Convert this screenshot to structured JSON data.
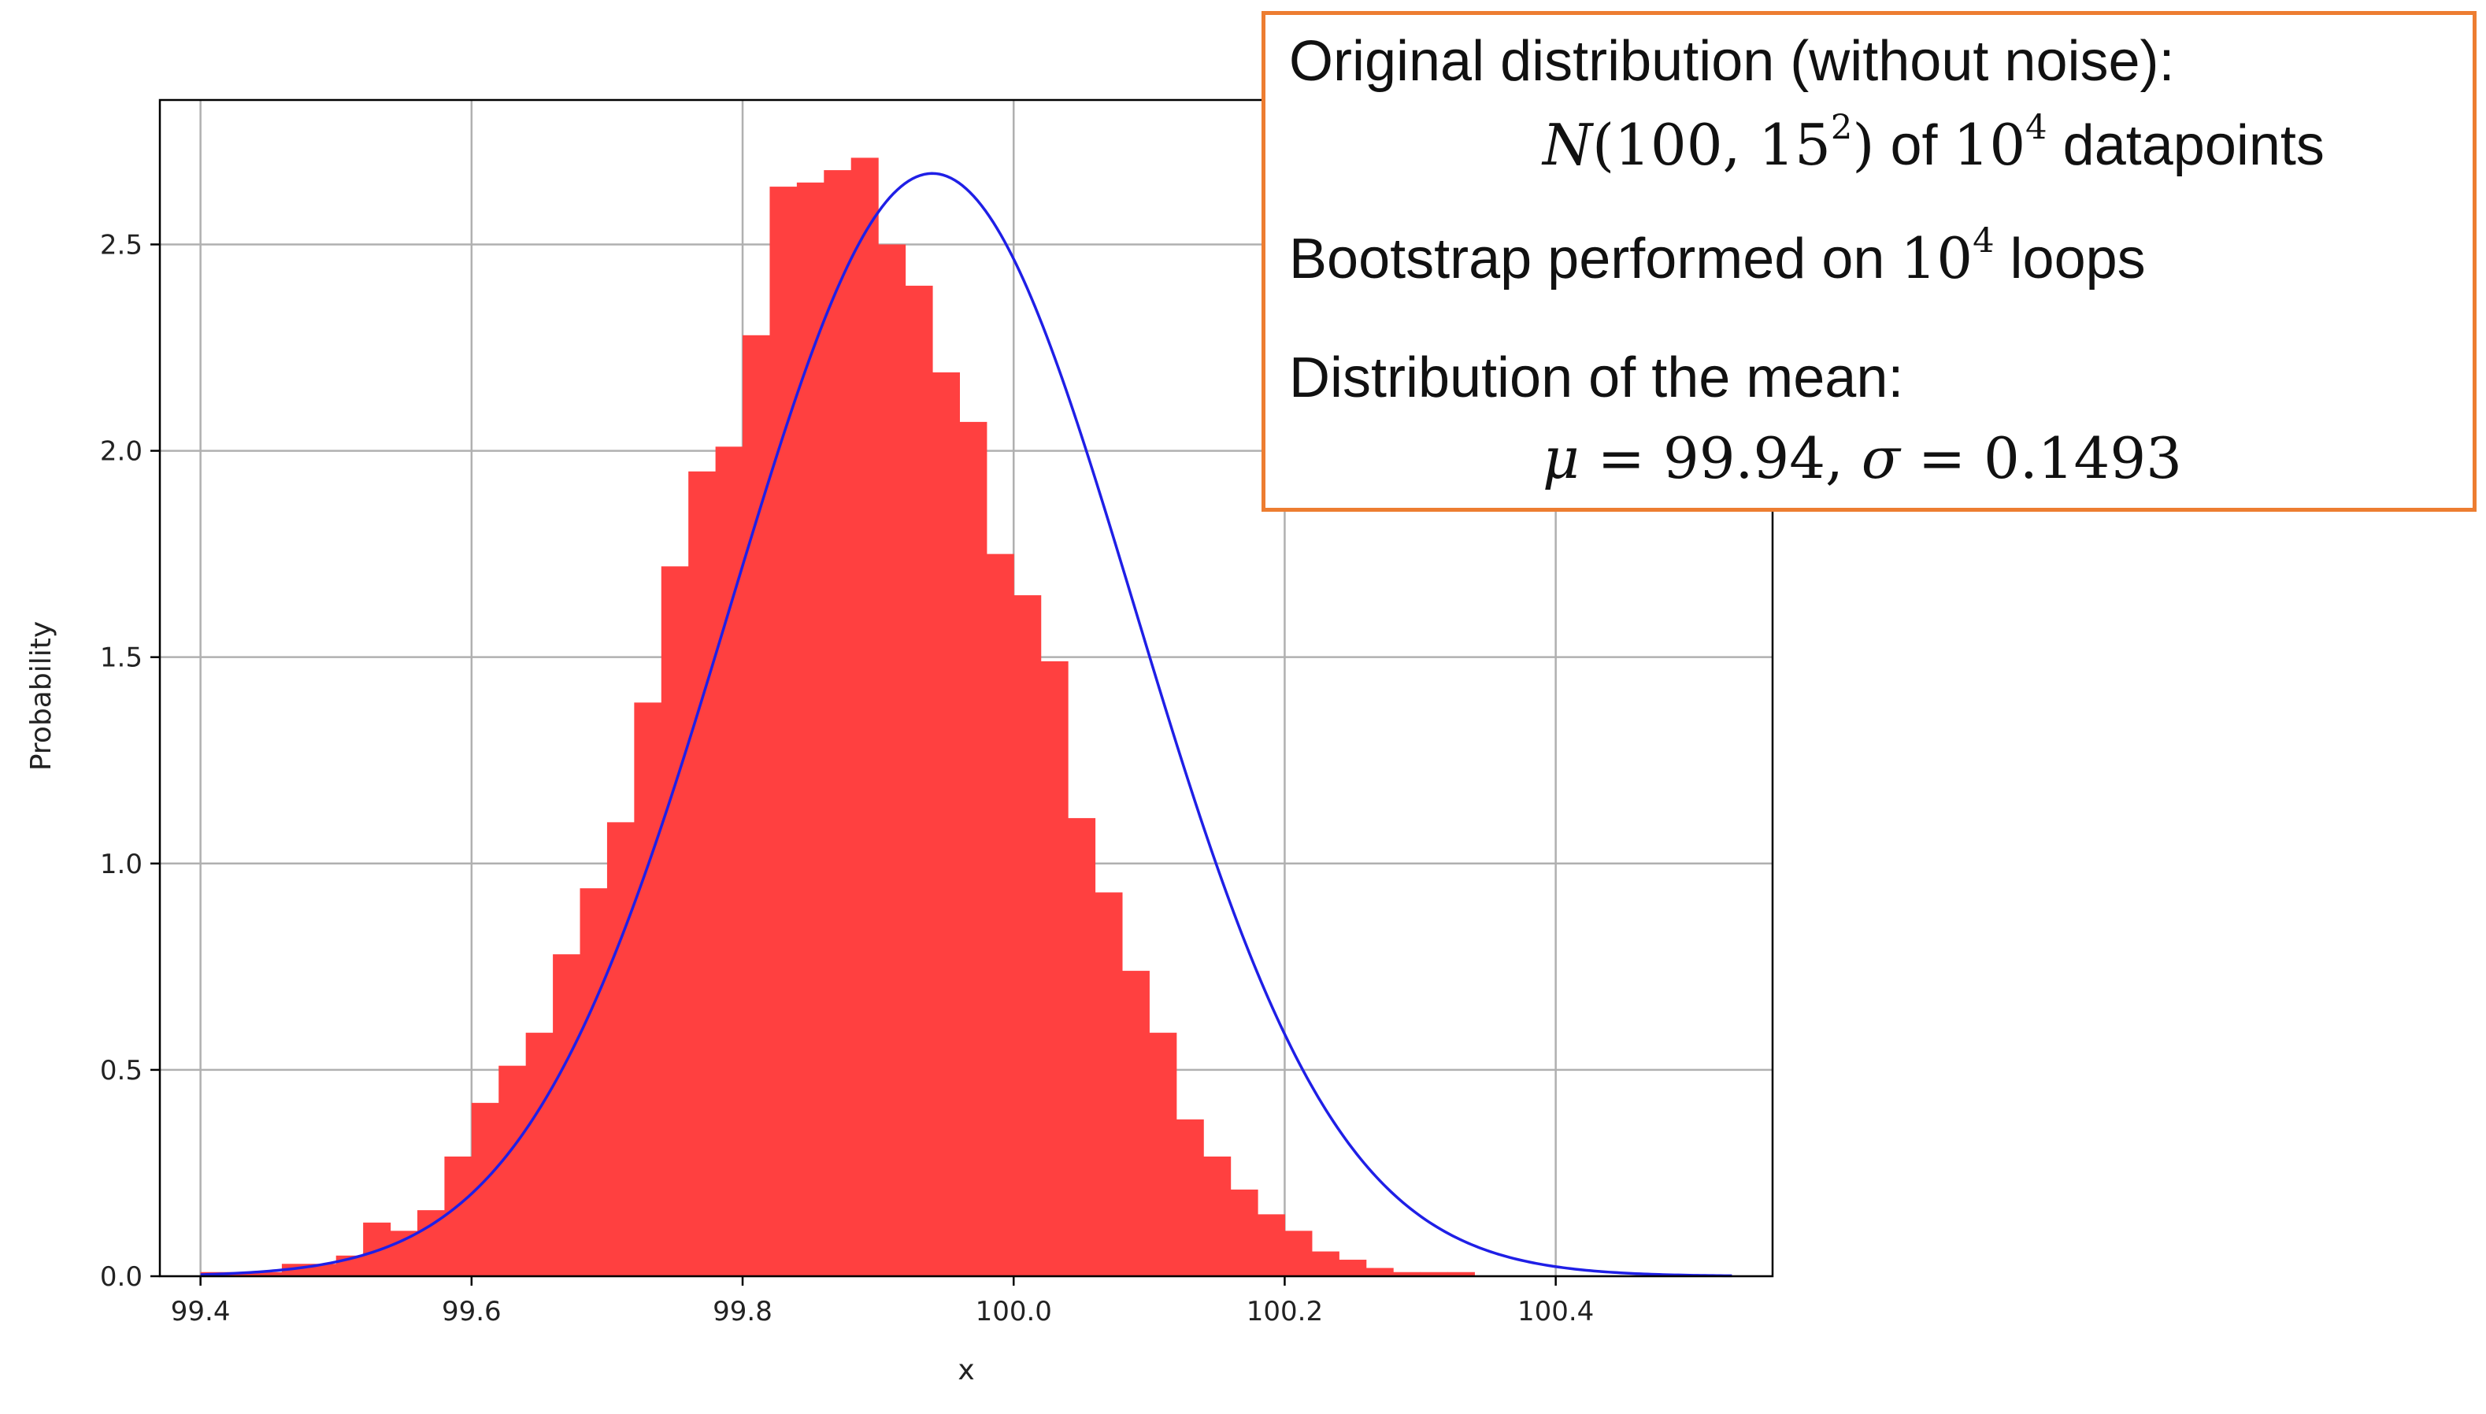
{
  "chart_data": {
    "type": "bar",
    "xlabel": "x",
    "ylabel": "Probability",
    "xlim": [
      99.37,
      100.56
    ],
    "ylim": [
      0,
      2.85
    ],
    "xticks": [
      "99.4",
      "99.6",
      "99.8",
      "100.0",
      "100.2",
      "100.4"
    ],
    "yticks": [
      "0.0",
      "0.5",
      "1.0",
      "1.5",
      "2.0",
      "2.5"
    ],
    "grid": true,
    "bar_color": "#FF4040",
    "fit_color": "#1F1FE6",
    "bins": {
      "start": 99.4,
      "width": 0.02,
      "values": [
        0.01,
        0.01,
        0.01,
        0.03,
        0.03,
        0.05,
        0.13,
        0.11,
        0.16,
        0.29,
        0.42,
        0.51,
        0.59,
        0.78,
        0.94,
        1.1,
        1.39,
        1.72,
        1.95,
        2.01,
        2.28,
        2.64,
        2.65,
        2.68,
        2.71,
        2.5,
        2.4,
        2.19,
        2.07,
        1.75,
        1.65,
        1.49,
        1.11,
        0.93,
        0.74,
        0.59,
        0.38,
        0.29,
        0.21,
        0.15,
        0.11,
        0.06,
        0.04,
        0.02,
        0.01,
        0.01,
        0.01
      ]
    },
    "fit": {
      "distribution": "normal",
      "mu": 99.94,
      "sigma": 0.1493,
      "x_range": [
        99.4,
        100.53
      ]
    }
  },
  "info_box": {
    "line1": "Original distribution (without noise):",
    "line2_dist": "N",
    "line2_args": "(100,  15",
    "line2_exp": "2",
    "line2_close": ")",
    "line2_of": " of ",
    "line2_base": "10",
    "line2_pow": "4",
    "line2_tail": " datapoints",
    "line3_pre": "Bootstrap performed on ",
    "line3_base": "10",
    "line3_pow": "4",
    "line3_tail": " loops",
    "line4": "Distribution of the mean:",
    "line5_mu": "μ",
    "line5_eq1": " = 99.94, ",
    "line5_sigma": "σ",
    "line5_eq2": " = 0.1493"
  },
  "colors": {
    "box_border": "#ED7D31"
  }
}
